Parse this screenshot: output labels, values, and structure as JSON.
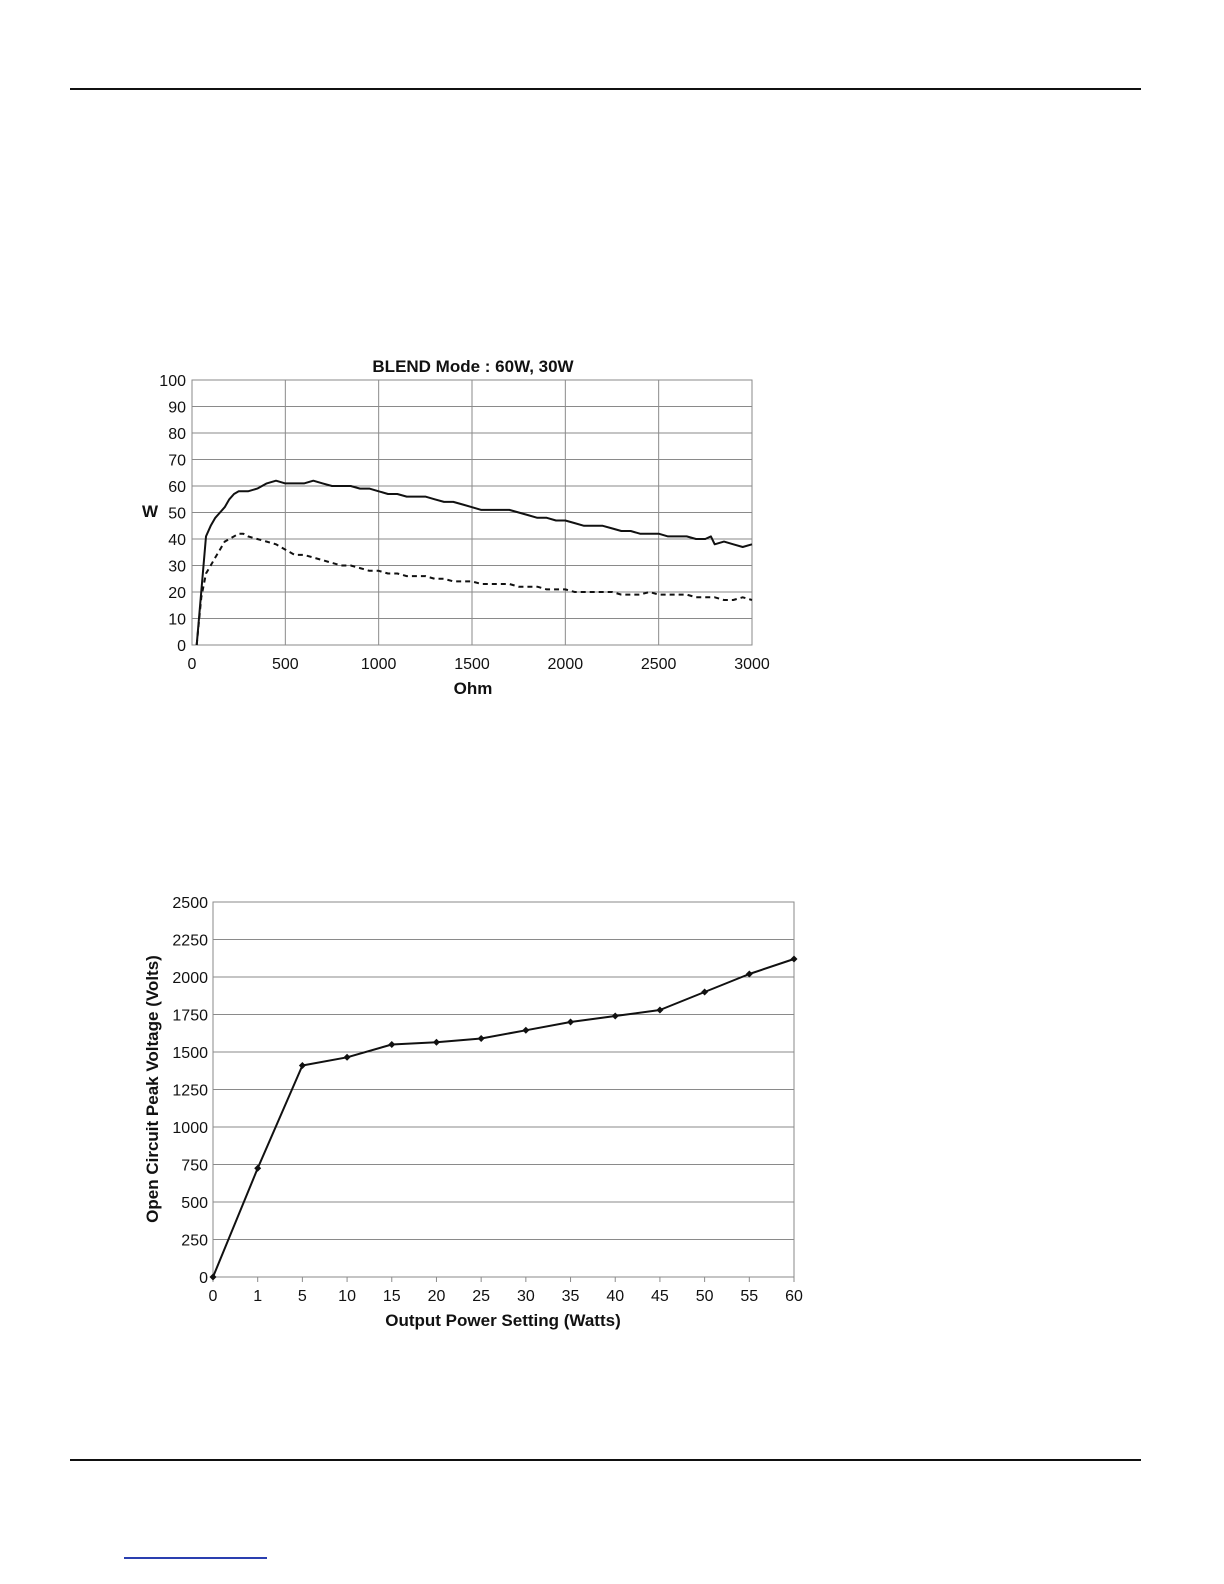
{
  "chart_data": [
    {
      "type": "line",
      "title": "BLEND Mode : 60W, 30W",
      "xlabel": "Ohm",
      "ylabel": "W",
      "xlim": [
        0,
        3000
      ],
      "ylim": [
        0,
        100
      ],
      "xticks": [
        "0",
        "500",
        "1000",
        "1500",
        "2000",
        "2500",
        "3000"
      ],
      "yticks": [
        "0",
        "10",
        "20",
        "30",
        "40",
        "50",
        "60",
        "70",
        "80",
        "90",
        "100"
      ],
      "grid": true,
      "series": [
        {
          "style": "solid",
          "color": "#111111",
          "points": [
            [
              25,
              0
            ],
            [
              75,
              41
            ],
            [
              100,
              45
            ],
            [
              125,
              48
            ],
            [
              150,
              50
            ],
            [
              175,
              52
            ],
            [
              200,
              55
            ],
            [
              225,
              57
            ],
            [
              250,
              58
            ],
            [
              300,
              58
            ],
            [
              350,
              59
            ],
            [
              400,
              61
            ],
            [
              450,
              62
            ],
            [
              500,
              61
            ],
            [
              550,
              61
            ],
            [
              600,
              61
            ],
            [
              650,
              62
            ],
            [
              700,
              61
            ],
            [
              750,
              60
            ],
            [
              800,
              60
            ],
            [
              850,
              60
            ],
            [
              900,
              59
            ],
            [
              950,
              59
            ],
            [
              1000,
              58
            ],
            [
              1050,
              57
            ],
            [
              1100,
              57
            ],
            [
              1150,
              56
            ],
            [
              1200,
              56
            ],
            [
              1250,
              56
            ],
            [
              1300,
              55
            ],
            [
              1350,
              54
            ],
            [
              1400,
              54
            ],
            [
              1450,
              53
            ],
            [
              1500,
              52
            ],
            [
              1550,
              51
            ],
            [
              1600,
              51
            ],
            [
              1650,
              51
            ],
            [
              1700,
              51
            ],
            [
              1750,
              50
            ],
            [
              1800,
              49
            ],
            [
              1850,
              48
            ],
            [
              1900,
              48
            ],
            [
              1950,
              47
            ],
            [
              2000,
              47
            ],
            [
              2050,
              46
            ],
            [
              2100,
              45
            ],
            [
              2150,
              45
            ],
            [
              2200,
              45
            ],
            [
              2250,
              44
            ],
            [
              2300,
              43
            ],
            [
              2350,
              43
            ],
            [
              2400,
              42
            ],
            [
              2450,
              42
            ],
            [
              2500,
              42
            ],
            [
              2550,
              41
            ],
            [
              2600,
              41
            ],
            [
              2650,
              41
            ],
            [
              2700,
              40
            ],
            [
              2750,
              40
            ],
            [
              2780,
              41
            ],
            [
              2800,
              38
            ],
            [
              2850,
              39
            ],
            [
              2900,
              38
            ],
            [
              2950,
              37
            ],
            [
              3000,
              38
            ]
          ]
        },
        {
          "style": "dashed",
          "color": "#111111",
          "points": [
            [
              25,
              0
            ],
            [
              50,
              18
            ],
            [
              75,
              27
            ],
            [
              100,
              30
            ],
            [
              125,
              33
            ],
            [
              150,
              36
            ],
            [
              175,
              39
            ],
            [
              200,
              40
            ],
            [
              225,
              41
            ],
            [
              250,
              42
            ],
            [
              275,
              42
            ],
            [
              300,
              41
            ],
            [
              350,
              40
            ],
            [
              400,
              39
            ],
            [
              450,
              38
            ],
            [
              500,
              36
            ],
            [
              550,
              34
            ],
            [
              600,
              34
            ],
            [
              650,
              33
            ],
            [
              700,
              32
            ],
            [
              750,
              31
            ],
            [
              800,
              30
            ],
            [
              850,
              30
            ],
            [
              900,
              29
            ],
            [
              950,
              28
            ],
            [
              1000,
              28
            ],
            [
              1050,
              27
            ],
            [
              1100,
              27
            ],
            [
              1150,
              26
            ],
            [
              1200,
              26
            ],
            [
              1250,
              26
            ],
            [
              1300,
              25
            ],
            [
              1350,
              25
            ],
            [
              1400,
              24
            ],
            [
              1450,
              24
            ],
            [
              1500,
              24
            ],
            [
              1550,
              23
            ],
            [
              1600,
              23
            ],
            [
              1650,
              23
            ],
            [
              1700,
              23
            ],
            [
              1750,
              22
            ],
            [
              1800,
              22
            ],
            [
              1850,
              22
            ],
            [
              1900,
              21
            ],
            [
              1950,
              21
            ],
            [
              2000,
              21
            ],
            [
              2050,
              20
            ],
            [
              2100,
              20
            ],
            [
              2150,
              20
            ],
            [
              2200,
              20
            ],
            [
              2250,
              20
            ],
            [
              2300,
              19
            ],
            [
              2350,
              19
            ],
            [
              2400,
              19
            ],
            [
              2450,
              20
            ],
            [
              2500,
              19
            ],
            [
              2550,
              19
            ],
            [
              2600,
              19
            ],
            [
              2650,
              19
            ],
            [
              2700,
              18
            ],
            [
              2750,
              18
            ],
            [
              2800,
              18
            ],
            [
              2850,
              17
            ],
            [
              2900,
              17
            ],
            [
              2950,
              18
            ],
            [
              3000,
              17
            ]
          ]
        }
      ]
    },
    {
      "type": "line",
      "title": "",
      "xlabel": "Output Power Setting (Watts)",
      "ylabel": "Open Circuit Peak Voltage (Volts)",
      "categories": [
        "0",
        "1",
        "5",
        "10",
        "15",
        "20",
        "25",
        "30",
        "35",
        "40",
        "45",
        "50",
        "55",
        "60"
      ],
      "ylim": [
        0,
        2500
      ],
      "yticks": [
        "0",
        "250",
        "500",
        "750",
        "1000",
        "1250",
        "1500",
        "1750",
        "2000",
        "2250",
        "2500"
      ],
      "grid": true,
      "series": [
        {
          "color": "#111111",
          "markers": "diamond",
          "values": [
            0,
            725,
            1410,
            1465,
            1550,
            1565,
            1590,
            1645,
            1700,
            1740,
            1780,
            1900,
            2020,
            2120
          ]
        }
      ]
    }
  ]
}
